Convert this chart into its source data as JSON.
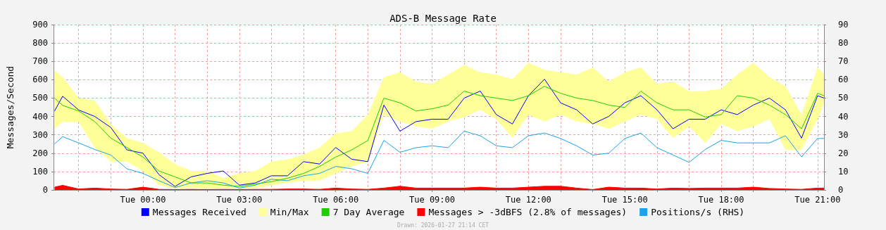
{
  "chart_data": {
    "type": "line",
    "title": "ADS-B Message Rate",
    "ylabel": "Messages/Second",
    "annotations": [
      "Drawn: 2026-01-27 21:14 CET"
    ],
    "x": [
      "2026-01-26T21:15",
      "2026-01-26T21:30",
      "2026-01-26T22:00",
      "2026-01-26T22:30",
      "2026-01-26T23:00",
      "2026-01-26T23:30",
      "2026-01-27T00:00",
      "2026-01-27T00:30",
      "2026-01-27T01:00",
      "2026-01-27T01:30",
      "2026-01-27T02:00",
      "2026-01-27T02:30",
      "2026-01-27T03:00",
      "2026-01-27T03:30",
      "2026-01-27T04:00",
      "2026-01-27T04:30",
      "2026-01-27T05:00",
      "2026-01-27T05:30",
      "2026-01-27T06:00",
      "2026-01-27T06:30",
      "2026-01-27T07:00",
      "2026-01-27T07:30",
      "2026-01-27T08:00",
      "2026-01-27T08:30",
      "2026-01-27T09:00",
      "2026-01-27T09:30",
      "2026-01-27T10:00",
      "2026-01-27T10:30",
      "2026-01-27T11:00",
      "2026-01-27T11:30",
      "2026-01-27T12:00",
      "2026-01-27T12:30",
      "2026-01-27T13:00",
      "2026-01-27T13:30",
      "2026-01-27T14:00",
      "2026-01-27T14:30",
      "2026-01-27T15:00",
      "2026-01-27T15:30",
      "2026-01-27T16:00",
      "2026-01-27T16:30",
      "2026-01-27T17:00",
      "2026-01-27T17:30",
      "2026-01-27T18:00",
      "2026-01-27T18:30",
      "2026-01-27T19:00",
      "2026-01-27T19:30",
      "2026-01-27T20:00",
      "2026-01-27T20:30",
      "2026-01-27T21:00",
      "2026-01-27T21:12"
    ],
    "xlim": [
      "2026-01-26T21:13",
      "2026-01-27T21:12"
    ],
    "xticks": [
      {
        "value": "2026-01-26T22:00",
        "label": null
      },
      {
        "value": "2026-01-26T23:00",
        "label": null
      },
      {
        "value": "2026-01-27T00:00",
        "label": "Tue 00:00"
      },
      {
        "value": "2026-01-27T01:00",
        "label": null
      },
      {
        "value": "2026-01-27T02:00",
        "label": null
      },
      {
        "value": "2026-01-27T03:00",
        "label": "Tue 03:00"
      },
      {
        "value": "2026-01-27T04:00",
        "label": null
      },
      {
        "value": "2026-01-27T05:00",
        "label": null
      },
      {
        "value": "2026-01-27T06:00",
        "label": "Tue 06:00"
      },
      {
        "value": "2026-01-27T07:00",
        "label": null
      },
      {
        "value": "2026-01-27T08:00",
        "label": null
      },
      {
        "value": "2026-01-27T09:00",
        "label": "Tue 09:00"
      },
      {
        "value": "2026-01-27T10:00",
        "label": null
      },
      {
        "value": "2026-01-27T11:00",
        "label": null
      },
      {
        "value": "2026-01-27T12:00",
        "label": "Tue 12:00"
      },
      {
        "value": "2026-01-27T13:00",
        "label": null
      },
      {
        "value": "2026-01-27T14:00",
        "label": null
      },
      {
        "value": "2026-01-27T15:00",
        "label": "Tue 15:00"
      },
      {
        "value": "2026-01-27T16:00",
        "label": null
      },
      {
        "value": "2026-01-27T17:00",
        "label": null
      },
      {
        "value": "2026-01-27T18:00",
        "label": "Tue 18:00"
      },
      {
        "value": "2026-01-27T19:00",
        "label": null
      },
      {
        "value": "2026-01-27T20:00",
        "label": null
      },
      {
        "value": "2026-01-27T21:00",
        "label": "Tue 21:00"
      }
    ],
    "ylim": [
      0,
      900
    ],
    "yticks": [
      0,
      100,
      200,
      300,
      400,
      500,
      600,
      700,
      800,
      900
    ],
    "y2lim": [
      0,
      90
    ],
    "y2ticks": [
      0,
      10,
      20,
      30,
      40,
      50,
      60,
      70,
      80,
      90
    ],
    "grid": true,
    "legend": "bottom",
    "marker": "none",
    "series": [
      {
        "name": "Messages Received",
        "color": "#0000ff",
        "values": [
          430,
          510,
          435,
          400,
          340,
          218,
          200,
          83,
          19,
          71,
          90,
          103,
          26,
          38,
          77,
          77,
          154,
          141,
          231,
          167,
          154,
          462,
          320,
          372,
          385,
          385,
          500,
          538,
          410,
          359,
          513,
          603,
          474,
          436,
          359,
          400,
          474,
          513,
          436,
          333,
          385,
          385,
          436,
          410,
          462,
          500,
          436,
          282,
          513,
          500
        ]
      },
      {
        "name": "Min/Max",
        "color": "#ffff99",
        "values": [
          null,
          null,
          null,
          null,
          null,
          null,
          null,
          null,
          null,
          null,
          null,
          null,
          null,
          null,
          null,
          null,
          null,
          null,
          null,
          null,
          null,
          null,
          null,
          null,
          null,
          null,
          null,
          null,
          null,
          null,
          null,
          null,
          null,
          null,
          null,
          null,
          null,
          null,
          null,
          null,
          null,
          null,
          null,
          null,
          null,
          null,
          null,
          null,
          null,
          null
        ],
        "lower": [
          333,
          370,
          370,
          230,
          154,
          154,
          103,
          26,
          6,
          13,
          6,
          10,
          6,
          10,
          26,
          38,
          51,
          51,
          90,
          128,
          154,
          410,
          372,
          346,
          333,
          372,
          397,
          436,
          385,
          282,
          410,
          372,
          410,
          372,
          359,
          333,
          372,
          410,
          385,
          282,
          346,
          256,
          359,
          320,
          346,
          385,
          218,
          218,
          385,
          474
        ],
        "upper": [
          650,
          615,
          500,
          487,
          359,
          282,
          256,
          205,
          141,
          103,
          103,
          64,
          90,
          103,
          154,
          167,
          192,
          231,
          308,
          320,
          410,
          615,
          641,
          590,
          577,
          628,
          680,
          641,
          628,
          603,
          692,
          654,
          641,
          628,
          667,
          590,
          641,
          667,
          577,
          590,
          538,
          538,
          551,
          628,
          692,
          615,
          564,
          410,
          667,
          628
        ]
      },
      {
        "name": "7 Day Average",
        "color": "#22cc00",
        "values": [
          500,
          460,
          430,
          372,
          282,
          231,
          179,
          103,
          71,
          38,
          38,
          26,
          19,
          32,
          45,
          64,
          90,
          128,
          179,
          218,
          269,
          500,
          474,
          430,
          442,
          462,
          538,
          513,
          500,
          487,
          513,
          564,
          526,
          500,
          487,
          462,
          449,
          538,
          474,
          436,
          436,
          397,
          410,
          513,
          500,
          462,
          410,
          333,
          526,
          513
        ]
      },
      {
        "name": "Messages > -3dBFS (2.8% of messages)",
        "type": "area",
        "color": "#ff0000",
        "values": [
          15,
          25,
          5,
          10,
          5,
          3,
          15,
          3,
          2,
          3,
          2,
          3,
          2,
          3,
          3,
          5,
          5,
          3,
          10,
          5,
          3,
          10,
          20,
          10,
          10,
          10,
          10,
          15,
          10,
          10,
          15,
          20,
          20,
          10,
          2,
          15,
          10,
          10,
          5,
          10,
          8,
          10,
          10,
          10,
          15,
          8,
          5,
          3,
          10,
          10
        ]
      },
      {
        "name": "Positions/s (RHS)",
        "axis": "y2",
        "color": "#1aa3e8",
        "values": [
          25,
          29,
          25.6,
          22,
          19,
          11.5,
          9,
          5,
          1.3,
          3.8,
          5,
          3.8,
          1,
          2.6,
          5.8,
          5,
          7.7,
          9,
          12.8,
          11.5,
          9,
          27,
          20.5,
          23,
          24,
          23,
          32,
          29.5,
          24,
          23,
          29.5,
          31,
          28,
          24,
          19,
          20,
          28,
          31,
          23,
          19,
          15,
          22,
          27,
          25.6,
          25.6,
          25.6,
          29.5,
          18,
          28,
          28
        ]
      }
    ]
  }
}
